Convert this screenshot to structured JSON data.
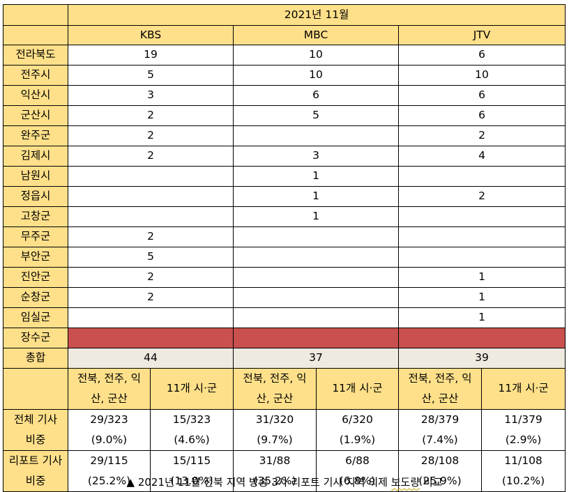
{
  "title": "2021년 11월",
  "stations": [
    "KBS",
    "MBC",
    "JTV"
  ],
  "regions": [
    {
      "name": "전라북도",
      "values": [
        "19",
        "10",
        "6"
      ]
    },
    {
      "name": "전주시",
      "values": [
        "5",
        "10",
        "10"
      ]
    },
    {
      "name": "익산시",
      "values": [
        "3",
        "6",
        "6"
      ]
    },
    {
      "name": "군산시",
      "values": [
        "2",
        "5",
        "6"
      ]
    },
    {
      "name": "완주군",
      "values": [
        "2",
        "",
        "2"
      ]
    },
    {
      "name": "김제시",
      "values": [
        "2",
        "3",
        "4"
      ]
    },
    {
      "name": "남원시",
      "values": [
        "",
        "1",
        ""
      ]
    },
    {
      "name": "정읍시",
      "values": [
        "",
        "1",
        "2"
      ]
    },
    {
      "name": "고창군",
      "values": [
        "",
        "1",
        ""
      ]
    },
    {
      "name": "무주군",
      "values": [
        "2",
        "",
        ""
      ]
    },
    {
      "name": "부안군",
      "values": [
        "5",
        "",
        ""
      ]
    },
    {
      "name": "진안군",
      "values": [
        "2",
        "",
        "1"
      ]
    },
    {
      "name": "순창군",
      "values": [
        "2",
        "",
        "1"
      ]
    },
    {
      "name": "임실군",
      "values": [
        "",
        "",
        "1"
      ]
    }
  ],
  "no_report_region": {
    "name": "장수군",
    "fill_color": "#c9504e"
  },
  "total": {
    "label": "총합",
    "values": [
      "44",
      "37",
      "39"
    ]
  },
  "group_headers": [
    "전북, 전주, 익산, 군산",
    "11개 시·군"
  ],
  "share_rows": [
    {
      "label": "전체 기사 비중",
      "cells": [
        {
          "count": "29/323",
          "pct": "(9.0%)"
        },
        {
          "count": "15/323",
          "pct": "(4.6%)"
        },
        {
          "count": "31/320",
          "pct": "(9.7%)"
        },
        {
          "count": "6/320",
          "pct": "(1.9%)"
        },
        {
          "count": "28/379",
          "pct": "(7.4%)"
        },
        {
          "count": "11/379",
          "pct": "(2.9%)"
        }
      ]
    },
    {
      "label": "리포트 기사 비중",
      "cells": [
        {
          "count": "29/115",
          "pct": "(25.2%)"
        },
        {
          "count": "15/115",
          "pct": "(13.0%)"
        },
        {
          "count": "31/88",
          "pct": "(35.2%)"
        },
        {
          "count": "6/88",
          "pct": "(6.8%)"
        },
        {
          "count": "28/108",
          "pct": "(25.9%)"
        },
        {
          "count": "11/108",
          "pct": "(10.2%)"
        }
      ]
    }
  ],
  "caption": {
    "marker": "▲",
    "text": "2021년 11월 전북 지역 방송 3사 리포트 기사 지역 의제",
    "underlined": "보도량",
    "tail": "비교"
  },
  "colors": {
    "header_bg": "#ffe08a",
    "total_bg": "#efeae0",
    "no_report_bg": "#c9504e"
  }
}
